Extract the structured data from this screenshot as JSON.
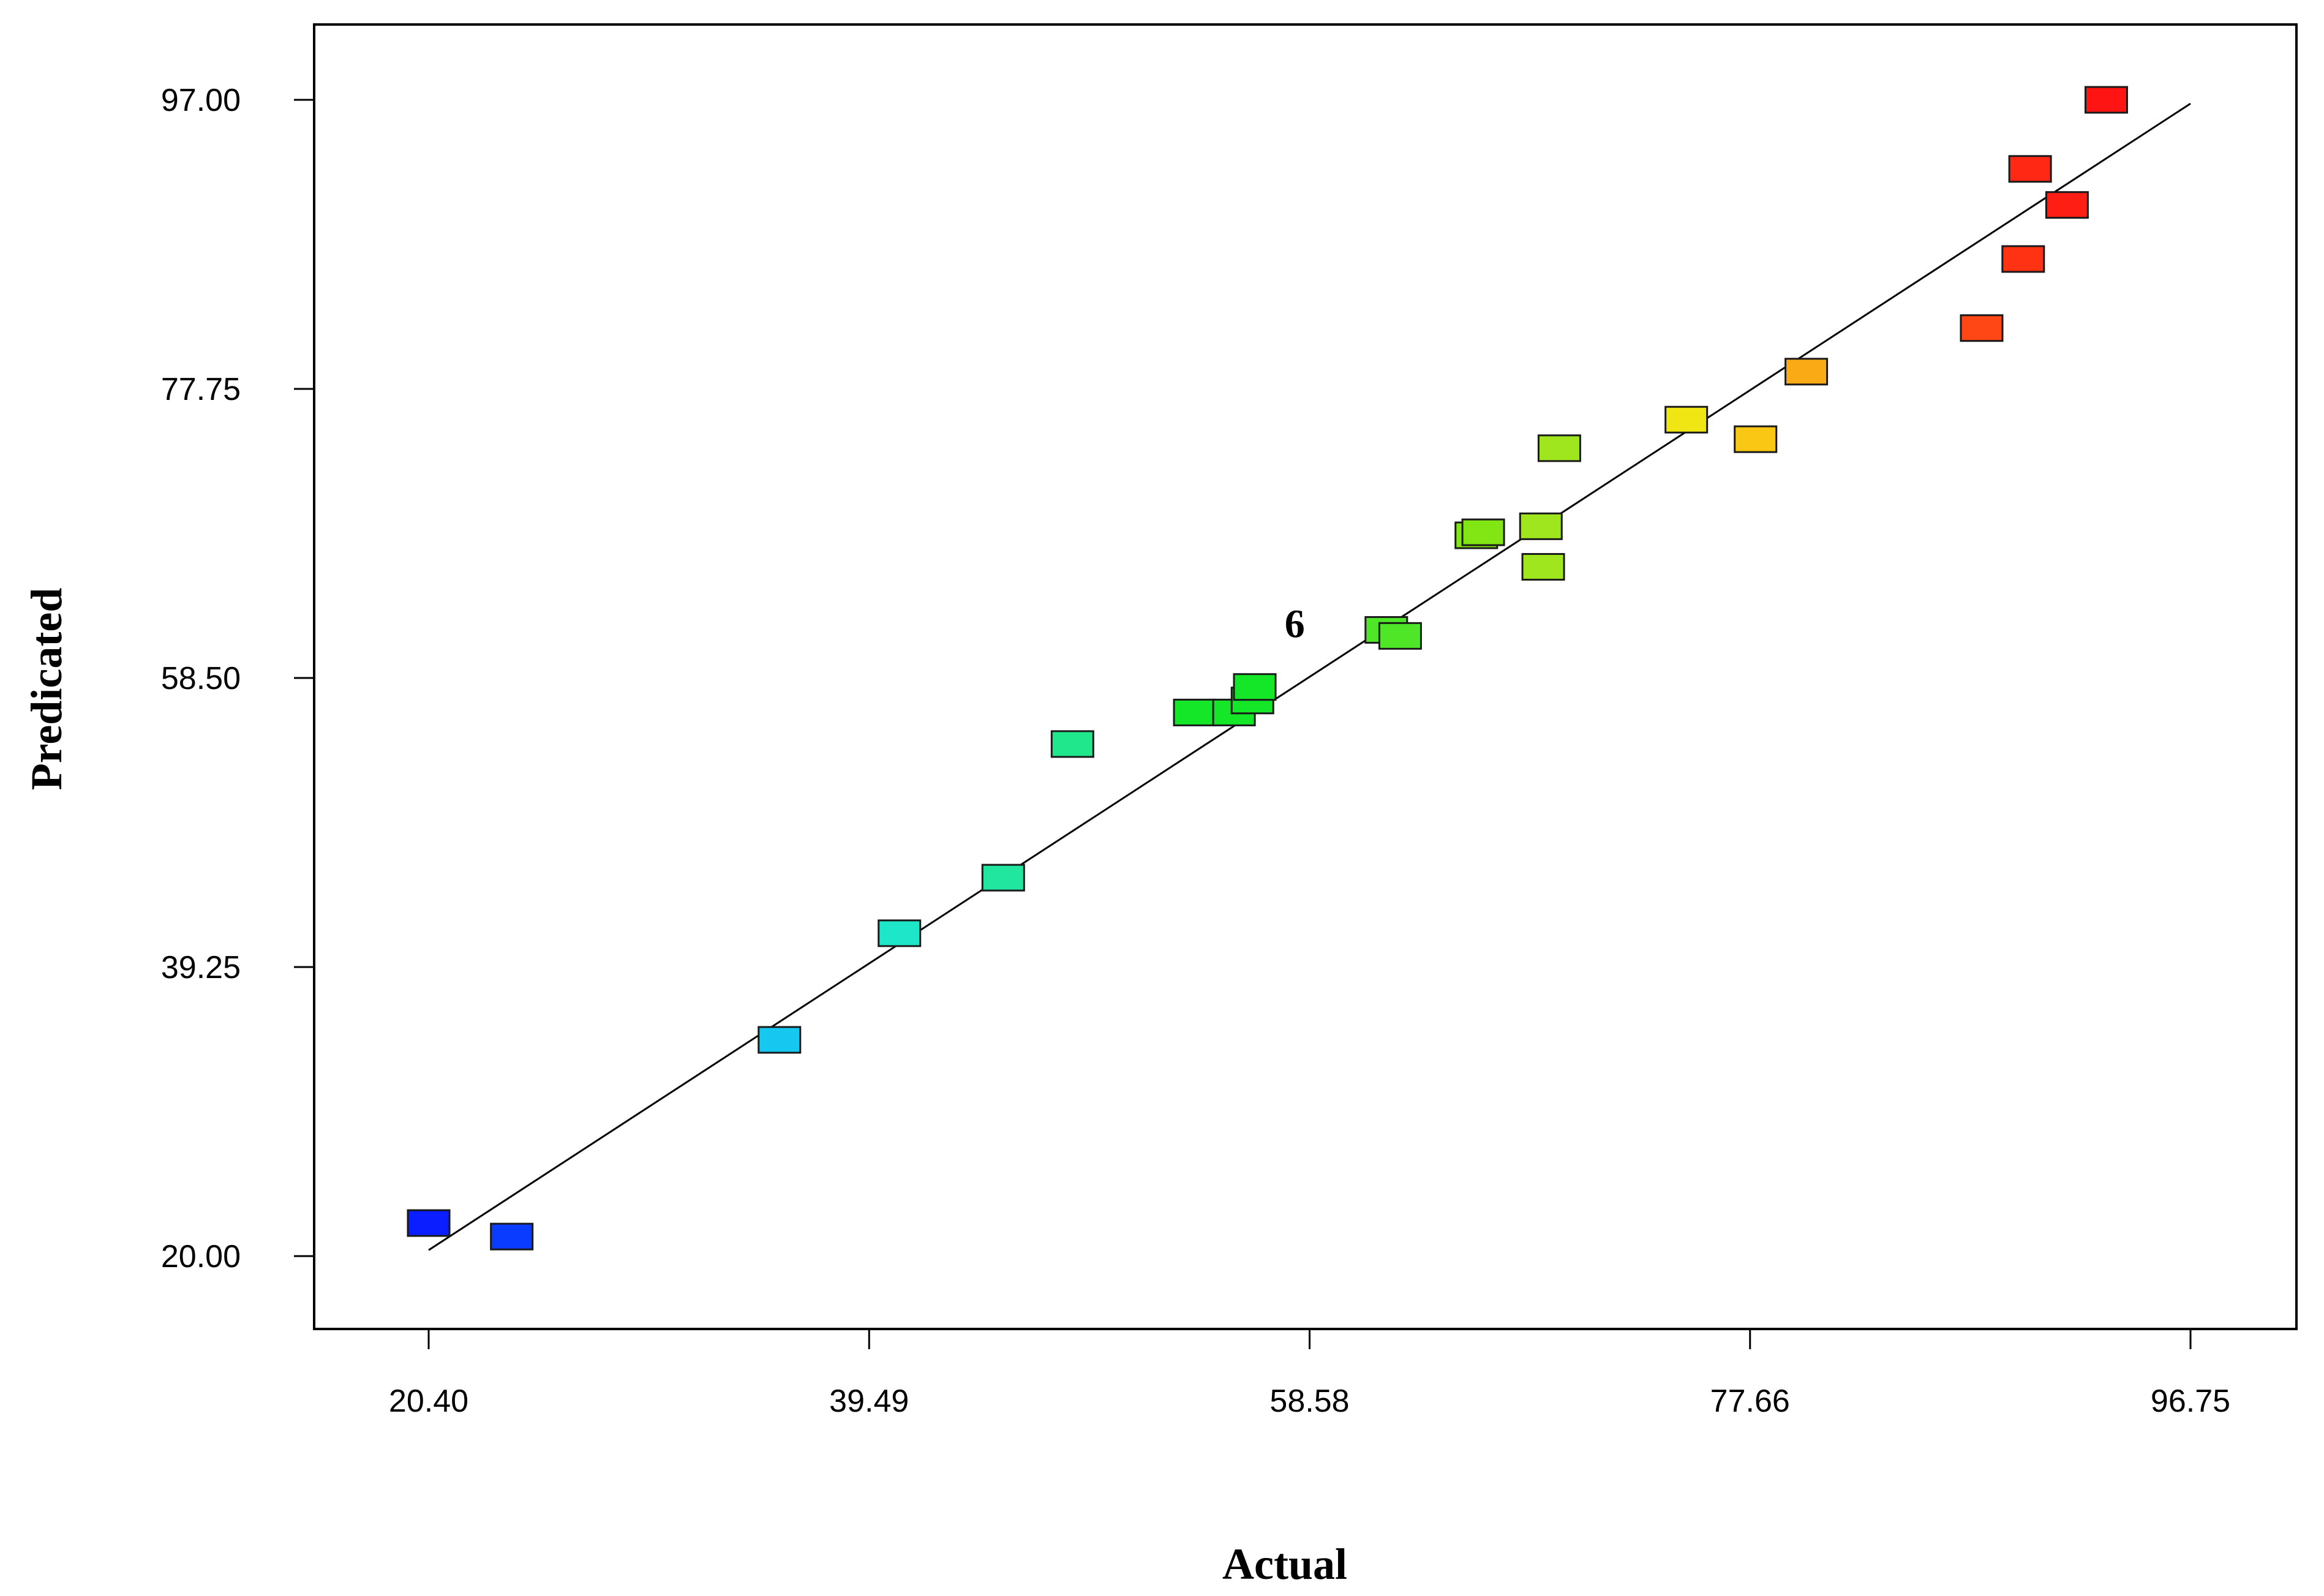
{
  "chart_data": {
    "type": "scatter",
    "xlabel": "Actual",
    "ylabel": "Predicated",
    "xlim": [
      20.4,
      96.75
    ],
    "ylim": [
      20.0,
      97.0
    ],
    "x_ticks": [
      "20.40",
      "39.49",
      "58.58",
      "77.66",
      "96.75"
    ],
    "y_ticks": [
      "20.00",
      "39.25",
      "58.50",
      "77.75",
      "97.00"
    ],
    "grid": false,
    "legend": "none",
    "reference_line": {
      "x": [
        20.4,
        96.75
      ],
      "y": [
        20.4,
        96.75
      ],
      "color": "#000000"
    },
    "annotations": [
      {
        "text": "6",
        "x": 60.0,
        "y": 62.1
      }
    ],
    "points": [
      {
        "x": 20.4,
        "y": 22.2,
        "color": "#0a1eff"
      },
      {
        "x": 24.0,
        "y": 21.3,
        "color": "#0a3cff"
      },
      {
        "x": 35.6,
        "y": 34.4,
        "color": "#16c8f0"
      },
      {
        "x": 40.8,
        "y": 41.5,
        "color": "#1ee6c8"
      },
      {
        "x": 45.3,
        "y": 45.2,
        "color": "#20e6a0"
      },
      {
        "x": 48.3,
        "y": 54.1,
        "color": "#20e68c"
      },
      {
        "x": 53.6,
        "y": 56.2,
        "color": "#14e628"
      },
      {
        "x": 55.3,
        "y": 56.2,
        "color": "#14e628"
      },
      {
        "x": 56.1,
        "y": 57.0,
        "color": "#14e628"
      },
      {
        "x": 56.2,
        "y": 57.9,
        "color": "#14e628"
      },
      {
        "x": 61.9,
        "y": 61.7,
        "color": "#50e628"
      },
      {
        "x": 62.5,
        "y": 61.3,
        "color": "#50e628"
      },
      {
        "x": 65.8,
        "y": 68.0,
        "color": "#82e614"
      },
      {
        "x": 66.1,
        "y": 68.2,
        "color": "#82e614"
      },
      {
        "x": 68.6,
        "y": 68.6,
        "color": "#a0e61e"
      },
      {
        "x": 68.7,
        "y": 65.9,
        "color": "#a0e61e"
      },
      {
        "x": 69.4,
        "y": 73.8,
        "color": "#a0e61e"
      },
      {
        "x": 74.9,
        "y": 75.7,
        "color": "#f0e614"
      },
      {
        "x": 77.9,
        "y": 74.4,
        "color": "#fac814"
      },
      {
        "x": 80.1,
        "y": 78.9,
        "color": "#faaa14"
      },
      {
        "x": 87.7,
        "y": 81.8,
        "color": "#ff4614"
      },
      {
        "x": 89.5,
        "y": 86.4,
        "color": "#ff3214"
      },
      {
        "x": 89.8,
        "y": 92.4,
        "color": "#ff2814"
      },
      {
        "x": 91.4,
        "y": 90.0,
        "color": "#ff1e14"
      },
      {
        "x": 93.1,
        "y": 97.0,
        "color": "#ff1414"
      }
    ]
  }
}
